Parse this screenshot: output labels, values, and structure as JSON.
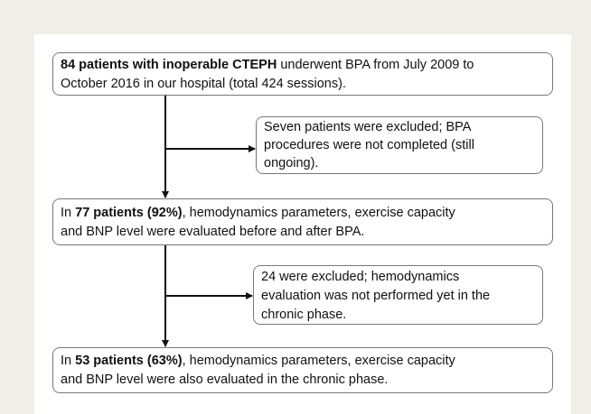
{
  "nodes": [
    {
      "bold": "84 patients with inoperable  CTEPH",
      "lines": [
        " underwent BPA from July 2009 to",
        "October 2016 in our hospital (total 424 sessions)."
      ]
    },
    {
      "lines": [
        "Seven patients were excluded; BPA",
        "procedures were not completed (still",
        "ongoing)."
      ]
    },
    {
      "prefix": "In ",
      "bold": "77 patients (92%)",
      "lines": [
        ", hemodynamics parameters, exercise capacity",
        "and BNP level were evaluated before and after BPA."
      ]
    },
    {
      "lines": [
        "24 were excluded; hemodynamics",
        "evaluation was not performed yet in the",
        "chronic phase."
      ]
    },
    {
      "prefix": "In ",
      "bold": "53 patients (63%)",
      "lines": [
        ", hemodynamics parameters, exercise capacity",
        "and BNP level were also evaluated in the chronic phase."
      ]
    }
  ]
}
